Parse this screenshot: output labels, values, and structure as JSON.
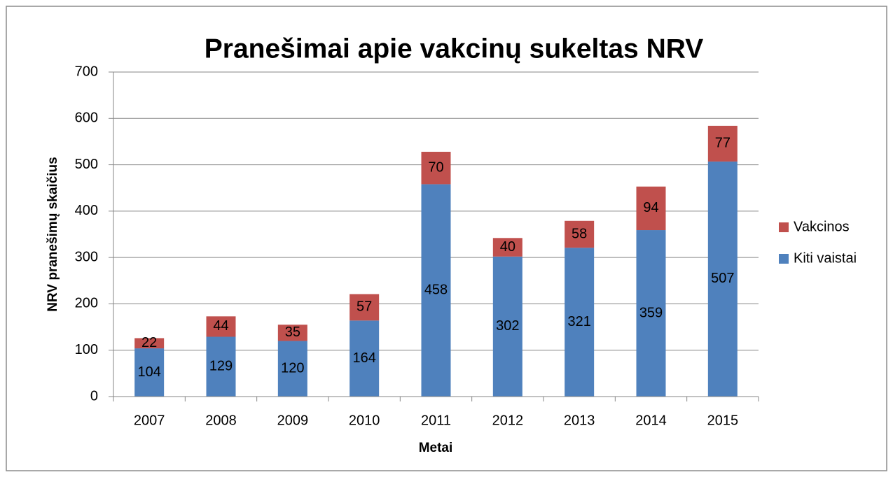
{
  "chart_data": {
    "type": "stacked_bar",
    "title": "Pranešimai apie vakcinų sukeltas NRV",
    "x_label": "Metai",
    "y_label": "NRV pranešimų skaičius",
    "categories": [
      "2007",
      "2008",
      "2009",
      "2010",
      "2011",
      "2012",
      "2013",
      "2014",
      "2015"
    ],
    "series": [
      {
        "name": "Kiti vaistai",
        "color": "#4f81bd",
        "values": [
          104,
          129,
          120,
          164,
          458,
          302,
          321,
          359,
          507
        ]
      },
      {
        "name": "Vakcinos",
        "color": "#c0504d",
        "values": [
          22,
          44,
          35,
          57,
          70,
          40,
          58,
          94,
          77
        ]
      }
    ],
    "ylim": [
      0,
      700
    ],
    "yticks": [
      0,
      100,
      200,
      300,
      400,
      500,
      600,
      700
    ],
    "grid": true,
    "legend": "right"
  }
}
